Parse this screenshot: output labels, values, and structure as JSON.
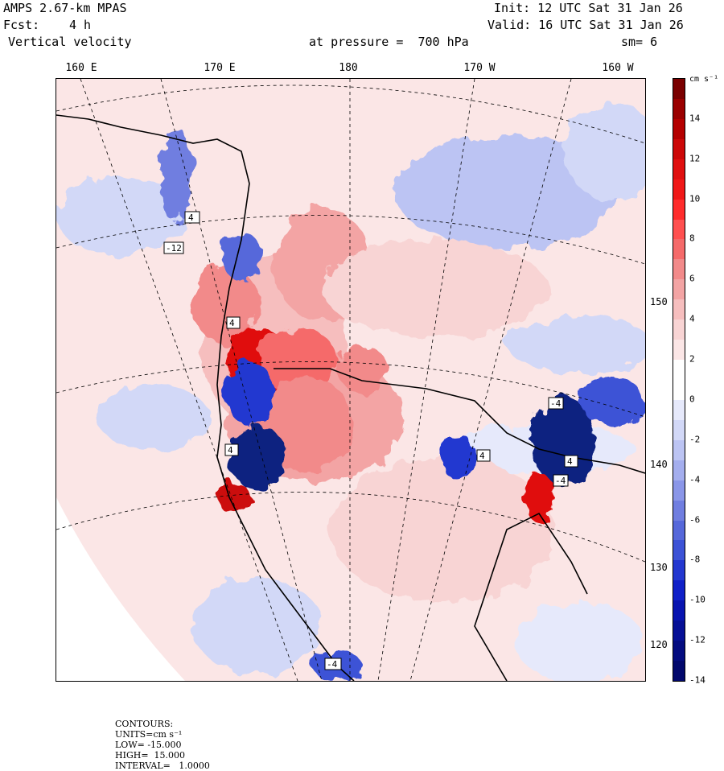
{
  "header": {
    "model": "AMPS 2.67-km MPAS",
    "init": "Init: 12 UTC Sat 31 Jan 26",
    "fcst_label": "Fcst:",
    "fcst_value": "4 h",
    "valid": "Valid: 16 UTC Sat 31 Jan 26",
    "field": "Vertical velocity",
    "level": "at pressure =  700 hPa",
    "smoothing": "sm= 6"
  },
  "map": {
    "lon_labels": [
      "160 E",
      "170 E",
      "180",
      "170 W",
      "160 W"
    ],
    "lat_labels": [
      "150 W",
      "140 W",
      "130 W",
      "120 W"
    ],
    "contour_labels": [
      "4",
      "-12",
      "4",
      "4",
      "4",
      "-4",
      "-4",
      "4",
      "-4"
    ],
    "colors": {
      "positive": "#f0a8a8",
      "strong_positive": "#c01818",
      "negative": "#8c96e6",
      "strong_negative": "#102080",
      "coast": "#000000"
    }
  },
  "colorbar": {
    "units_label": "cm s⁻¹",
    "ticks": [
      "14",
      "12",
      "10",
      "8",
      "6",
      "4",
      "2",
      "0",
      "-2",
      "-4",
      "-6",
      "-8",
      "-10",
      "-12",
      "-14"
    ],
    "colors": [
      "#7a0000",
      "#9a0000",
      "#b40000",
      "#cc0808",
      "#e01010",
      "#f01818",
      "#ff2c2c",
      "#ff5050",
      "#f56a6a",
      "#f28a8a",
      "#f3a4a4",
      "#f6bebe",
      "#f8d4d4",
      "#fbe6e6",
      "#ffffff",
      "#ffffff",
      "#e6e9fb",
      "#d2d8f7",
      "#bcc4f3",
      "#a4aeee",
      "#8a96e8",
      "#707ee0",
      "#5668da",
      "#3c52d6",
      "#2438d0",
      "#1020c8",
      "#0814b0",
      "#061096",
      "#040c80",
      "#02086c"
    ]
  },
  "footer": {
    "contours": "CONTOURS:",
    "units": "UNITS=cm s⁻¹",
    "low": "LOW= -15.000",
    "high": "HIGH=  15.000",
    "interval": "INTERVAL=   1.0000"
  }
}
